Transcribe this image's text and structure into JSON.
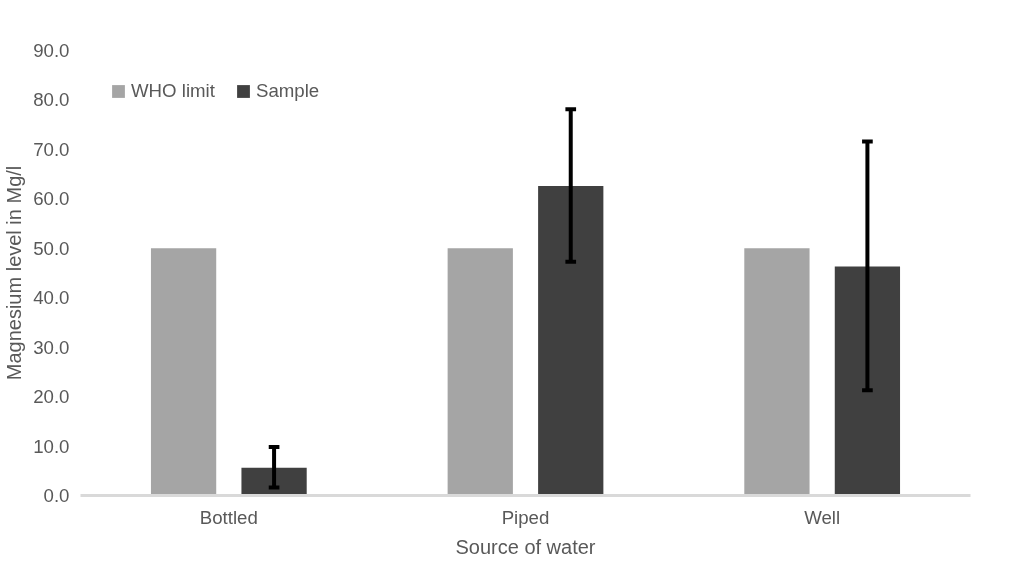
{
  "chart_data": {
    "type": "bar",
    "xlabel": "Source of water",
    "ylabel": "Magnesium level in Mg/l",
    "categories": [
      "Bottled",
      "Piped",
      "Well"
    ],
    "series": [
      {
        "name": "WHO limit",
        "color": "#a5a5a5",
        "values": [
          50.0,
          50.0,
          50.0
        ]
      },
      {
        "name": "Sample",
        "color": "#404040",
        "values": [
          5.6,
          62.6,
          46.3
        ],
        "errors": [
          [
            1.6,
            9.8
          ],
          [
            47.3,
            78.1
          ],
          [
            21.3,
            71.6
          ]
        ]
      }
    ],
    "ylim": [
      0,
      90
    ],
    "yticks": [
      {
        "value": 0,
        "label": "0.0"
      },
      {
        "value": 10,
        "label": "10.0"
      },
      {
        "value": 20,
        "label": "20.0"
      },
      {
        "value": 30,
        "label": "30.0"
      },
      {
        "value": 40,
        "label": "40.0"
      },
      {
        "value": 50,
        "label": "50.0"
      },
      {
        "value": 60,
        "label": "60.0"
      },
      {
        "value": 70,
        "label": "70.0"
      },
      {
        "value": 80,
        "label": "80.0"
      },
      {
        "value": 90,
        "label": "90.0"
      }
    ],
    "grid": false,
    "legend": "top left"
  }
}
